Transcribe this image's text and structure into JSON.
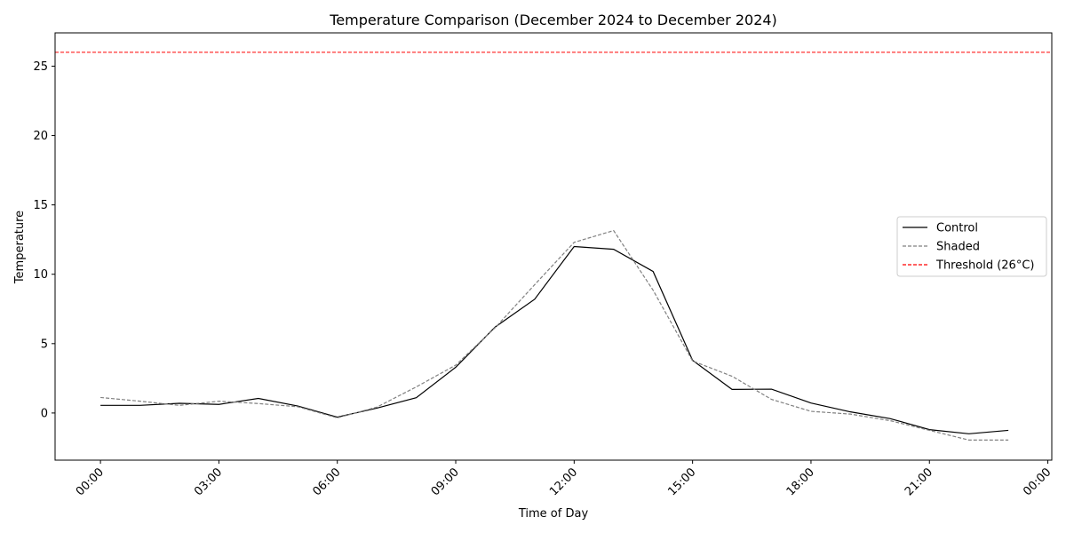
{
  "chart_data": {
    "type": "line",
    "title": "Temperature Comparison (December 2024 to December 2024)",
    "xlabel": "Time of Day",
    "ylabel": "Temperature",
    "x_hours": [
      0,
      1,
      2,
      3,
      4,
      5,
      6,
      7,
      8,
      9,
      10,
      11,
      12,
      13,
      14,
      15,
      16,
      17,
      18,
      19,
      20,
      21,
      22,
      23
    ],
    "x_ticks": [
      {
        "hour": 0,
        "label": "00:00"
      },
      {
        "hour": 3,
        "label": "03:00"
      },
      {
        "hour": 6,
        "label": "06:00"
      },
      {
        "hour": 9,
        "label": "09:00"
      },
      {
        "hour": 12,
        "label": "12:00"
      },
      {
        "hour": 15,
        "label": "15:00"
      },
      {
        "hour": 18,
        "label": "18:00"
      },
      {
        "hour": 21,
        "label": "21:00"
      },
      {
        "hour": 24,
        "label": "00:00"
      }
    ],
    "y_ticks": [
      0,
      5,
      10,
      15,
      20,
      25
    ],
    "xlim": [
      -1.15,
      24.1
    ],
    "ylim": [
      -3.4,
      27.4
    ],
    "series": [
      {
        "name": "Control",
        "color": "#000000",
        "dash": "solid",
        "values": [
          0.55,
          0.55,
          0.7,
          0.62,
          1.05,
          0.5,
          -0.3,
          0.35,
          1.1,
          3.3,
          6.2,
          8.2,
          12.0,
          11.8,
          10.2,
          3.8,
          1.7,
          1.72,
          0.72,
          0.08,
          -0.4,
          -1.2,
          -1.5,
          -1.25
        ]
      },
      {
        "name": "Shaded",
        "color": "#808080",
        "dash": "dashed",
        "values": [
          1.12,
          0.85,
          0.55,
          0.85,
          0.68,
          0.45,
          -0.35,
          0.42,
          1.88,
          3.45,
          6.15,
          9.25,
          12.3,
          13.15,
          8.85,
          3.75,
          2.65,
          0.98,
          0.12,
          -0.08,
          -0.55,
          -1.25,
          -1.95,
          -1.95
        ]
      }
    ],
    "threshold": {
      "name": "Threshold (26°C)",
      "value": 26,
      "color": "#ff0000",
      "dash": "dashed"
    },
    "legend_position": "right"
  }
}
